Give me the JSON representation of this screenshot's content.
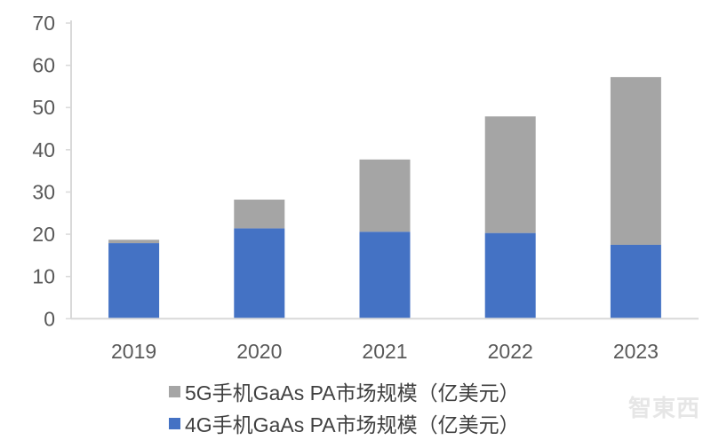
{
  "chart_data": {
    "type": "stacked-bar",
    "categories": [
      "2019",
      "2020",
      "2021",
      "2022",
      "2023"
    ],
    "series": [
      {
        "name": "4G手机GaAs PA市场规模（亿美元）",
        "color": "#4472c4",
        "values": [
          17.9,
          21.4,
          20.6,
          20.3,
          17.5
        ]
      },
      {
        "name": "5G手机GaAs PA市场规模（亿美元）",
        "color": "#a5a5a5",
        "values": [
          0.8,
          6.8,
          17.1,
          27.6,
          39.7
        ]
      }
    ],
    "ylim": [
      0,
      70
    ],
    "yticks": [
      0,
      10,
      20,
      30,
      40,
      50,
      60,
      70
    ],
    "grid": false,
    "legend_position": "bottom",
    "xlabel": "",
    "ylabel": "",
    "title": ""
  },
  "legend": [
    {
      "label": "5G手机GaAs PA市场规模（亿美元）",
      "color": "#a5a5a5"
    },
    {
      "label": "4G手机GaAs PA市场规模（亿美元）",
      "color": "#4472c4"
    }
  ],
  "watermark": "智東西"
}
